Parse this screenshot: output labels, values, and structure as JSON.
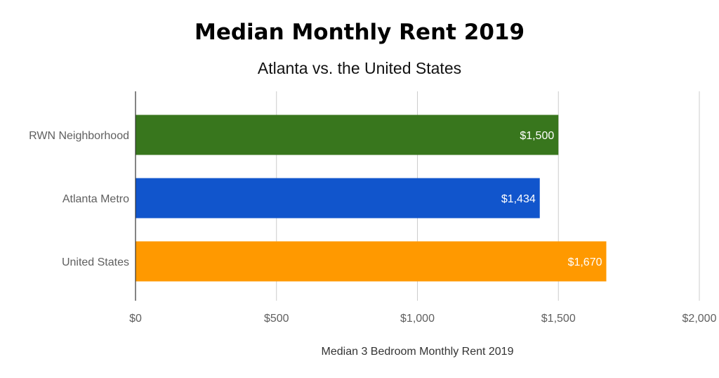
{
  "chart_data": {
    "type": "bar",
    "orientation": "horizontal",
    "title": "Median Monthly Rent 2019",
    "subtitle": "Atlanta vs. the United States",
    "xlabel": "Median 3 Bedroom Monthly Rent 2019",
    "ylabel": "",
    "categories": [
      "RWN Neighborhood",
      "Atlanta Metro",
      "United States"
    ],
    "values": [
      1500,
      1434,
      1670
    ],
    "value_labels": [
      "$1,500",
      "$1,434",
      "$1,670"
    ],
    "bar_colors": [
      "#38761d",
      "#1155cc",
      "#ff9900"
    ],
    "xlim": [
      0,
      2000
    ],
    "x_ticks": [
      0,
      500,
      1000,
      1500,
      2000
    ],
    "x_tick_labels": [
      "$0",
      "$500",
      "$1,000",
      "$1,500",
      "$2,000"
    ],
    "grid": true,
    "legend": "none"
  }
}
